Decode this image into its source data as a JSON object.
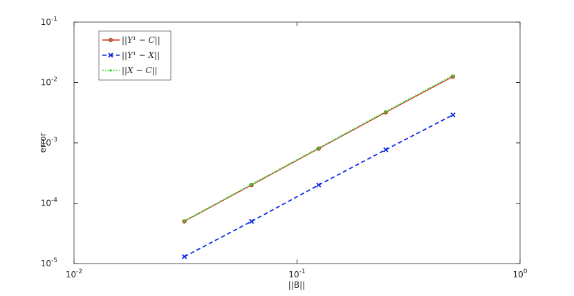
{
  "chart_data": {
    "type": "line",
    "log_x": true,
    "log_y": true,
    "x_label": "||B||",
    "y_label": "error",
    "x": [
      0.03125,
      0.0625,
      0.125,
      0.25,
      0.5
    ],
    "series": [
      {
        "name": "||Y¹ − C||",
        "color": "#d62728",
        "line": "solid",
        "marker": "circle",
        "values": [
          5e-05,
          0.0002,
          0.0008,
          0.0032,
          0.0125
        ]
      },
      {
        "name": "||Y¹ − X||",
        "color": "#0a28e6",
        "line": "dashed",
        "marker": "x",
        "values": [
          1.3e-05,
          5e-05,
          0.0002,
          0.00077,
          0.0029
        ]
      },
      {
        "name": "||X − C||",
        "color": "#22dd22",
        "line": "dotted",
        "marker": "dot",
        "values": [
          5.1e-05,
          0.000205,
          0.00082,
          0.0033,
          0.013
        ]
      }
    ],
    "xlim": [
      0.01,
      1
    ],
    "ylim": [
      1e-05,
      0.1
    ],
    "xticks": [
      {
        "value": 0.01,
        "label": "10",
        "exponent": "-2"
      },
      {
        "value": 0.1,
        "label": "10",
        "exponent": "-1"
      },
      {
        "value": 1,
        "label": "10",
        "exponent": "0"
      }
    ],
    "yticks": [
      {
        "value": 1e-05,
        "label": "10",
        "exponent": "-5"
      },
      {
        "value": 0.0001,
        "label": "10",
        "exponent": "-4"
      },
      {
        "value": 0.001,
        "label": "10",
        "exponent": "-3"
      },
      {
        "value": 0.01,
        "label": "10",
        "exponent": "-2"
      },
      {
        "value": 0.1,
        "label": "10",
        "exponent": "-1"
      }
    ],
    "legend": "upper-left",
    "grid": false
  }
}
